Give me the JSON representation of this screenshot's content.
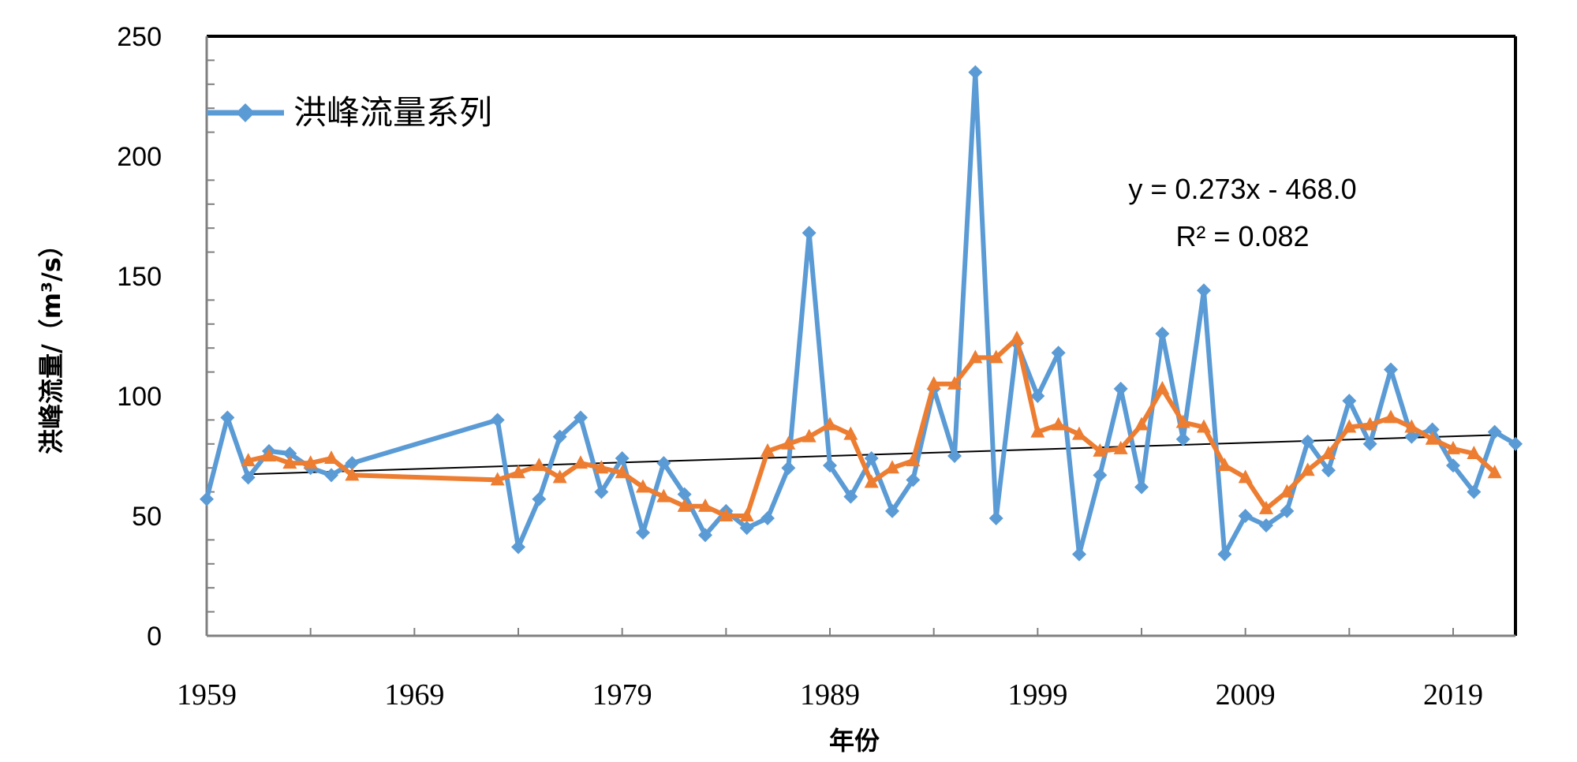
{
  "chart_data": {
    "type": "line",
    "title": "",
    "xlabel": "年份",
    "ylabel": "洪峰流量/（m³/s）",
    "xlim": [
      1959,
      2022
    ],
    "ylim": [
      0,
      250
    ],
    "x_ticks": [
      1959,
      1969,
      1979,
      1989,
      1999,
      2009,
      2019
    ],
    "y_ticks": [
      0,
      50,
      100,
      150,
      200,
      250
    ],
    "grid": false,
    "legend_position": "top-left",
    "legend": [
      "洪峰流量系列"
    ],
    "series": [
      {
        "name": "洪峰流量系列",
        "color": "#5B9BD5",
        "marker": "diamond",
        "points": [
          [
            1959,
            57
          ],
          [
            1960,
            91
          ],
          [
            1961,
            66
          ],
          [
            1962,
            77
          ],
          [
            1963,
            76
          ],
          [
            1964,
            70
          ],
          [
            1965,
            67
          ],
          [
            1966,
            72
          ],
          [
            1973,
            90
          ],
          [
            1974,
            37
          ],
          [
            1975,
            57
          ],
          [
            1976,
            83
          ],
          [
            1977,
            91
          ],
          [
            1978,
            60
          ],
          [
            1979,
            74
          ],
          [
            1980,
            43
          ],
          [
            1981,
            72
          ],
          [
            1982,
            59
          ],
          [
            1983,
            42
          ],
          [
            1984,
            52
          ],
          [
            1985,
            45
          ],
          [
            1986,
            49
          ],
          [
            1987,
            70
          ],
          [
            1988,
            168
          ],
          [
            1989,
            71
          ],
          [
            1990,
            58
          ],
          [
            1991,
            74
          ],
          [
            1992,
            52
          ],
          [
            1993,
            65
          ],
          [
            1994,
            103
          ],
          [
            1995,
            75
          ],
          [
            1996,
            235
          ],
          [
            1997,
            49
          ],
          [
            1998,
            122
          ],
          [
            1999,
            100
          ],
          [
            2000,
            118
          ],
          [
            2001,
            34
          ],
          [
            2002,
            67
          ],
          [
            2003,
            103
          ],
          [
            2004,
            62
          ],
          [
            2005,
            126
          ],
          [
            2006,
            82
          ],
          [
            2007,
            144
          ],
          [
            2008,
            34
          ],
          [
            2009,
            50
          ],
          [
            2010,
            46
          ],
          [
            2011,
            52
          ],
          [
            2012,
            81
          ],
          [
            2013,
            69
          ],
          [
            2014,
            98
          ],
          [
            2015,
            80
          ],
          [
            2016,
            111
          ],
          [
            2017,
            83
          ],
          [
            2018,
            86
          ],
          [
            2019,
            71
          ],
          [
            2020,
            60
          ],
          [
            2021,
            85
          ],
          [
            2022,
            80
          ]
        ]
      },
      {
        "name": "",
        "color": "#ED7D31",
        "marker": "triangle",
        "points": [
          [
            1961,
            73
          ],
          [
            1962,
            75
          ],
          [
            1963,
            72
          ],
          [
            1964,
            72
          ],
          [
            1965,
            74
          ],
          [
            1966,
            67
          ],
          [
            1973,
            65
          ],
          [
            1974,
            68
          ],
          [
            1975,
            71
          ],
          [
            1976,
            66
          ],
          [
            1977,
            72
          ],
          [
            1978,
            70
          ],
          [
            1979,
            68
          ],
          [
            1980,
            62
          ],
          [
            1981,
            58
          ],
          [
            1982,
            54
          ],
          [
            1983,
            54
          ],
          [
            1984,
            50
          ],
          [
            1985,
            50
          ],
          [
            1986,
            77
          ],
          [
            1987,
            80
          ],
          [
            1988,
            83
          ],
          [
            1989,
            88
          ],
          [
            1990,
            84
          ],
          [
            1991,
            64
          ],
          [
            1992,
            70
          ],
          [
            1993,
            73
          ],
          [
            1994,
            105
          ],
          [
            1995,
            105
          ],
          [
            1996,
            116
          ],
          [
            1997,
            116
          ],
          [
            1998,
            124
          ],
          [
            1999,
            85
          ],
          [
            2000,
            88
          ],
          [
            2001,
            84
          ],
          [
            2002,
            77
          ],
          [
            2003,
            78
          ],
          [
            2004,
            88
          ],
          [
            2005,
            103
          ],
          [
            2006,
            89
          ],
          [
            2007,
            87
          ],
          [
            2008,
            71
          ],
          [
            2009,
            66
          ],
          [
            2010,
            53
          ],
          [
            2011,
            60
          ],
          [
            2012,
            69
          ],
          [
            2013,
            76
          ],
          [
            2014,
            87
          ],
          [
            2015,
            88
          ],
          [
            2016,
            91
          ],
          [
            2017,
            87
          ],
          [
            2018,
            82
          ],
          [
            2019,
            78
          ],
          [
            2020,
            76
          ],
          [
            2021,
            68
          ]
        ]
      }
    ],
    "trendline": {
      "equation": "y = 0.273x - 468.0",
      "r_squared": "R² = 0.082",
      "slope": 0.273,
      "intercept": -468.0,
      "x_range": [
        1961,
        2021
      ],
      "color": "#000000"
    }
  }
}
